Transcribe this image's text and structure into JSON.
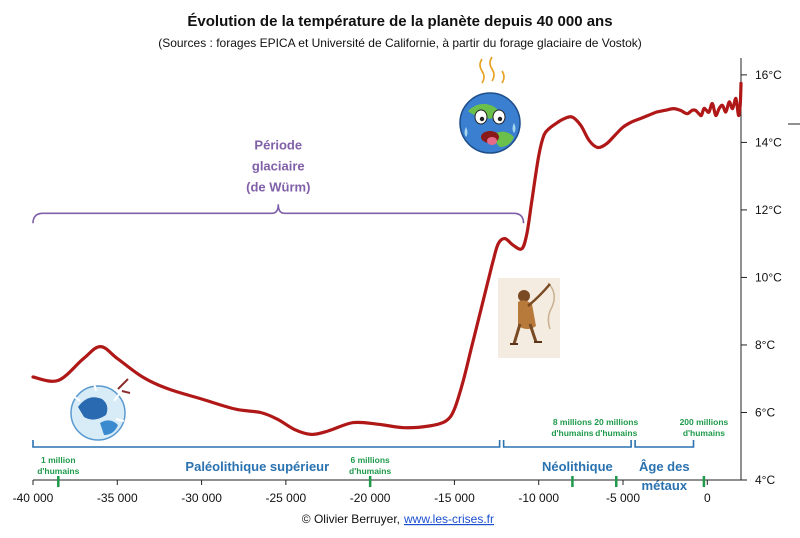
{
  "chart_data": {
    "type": "line",
    "title": "Évolution de la température de la planète depuis 40 000 ans",
    "subtitle": "(Sources : forages EPICA et Université de Californie, à partir du forage glaciaire de Vostok)",
    "xlabel": "",
    "ylabel": "",
    "xlim": [
      -40000,
      2000
    ],
    "ylim": [
      4,
      16.5
    ],
    "x_ticks": [
      -40000,
      -35000,
      -30000,
      -25000,
      -20000,
      -15000,
      -10000,
      -5000,
      0
    ],
    "x_tick_labels": [
      "-40 000",
      "-35 000",
      "-30 000",
      "-25 000",
      "-20 000",
      "-15 000",
      "-10 000",
      "-5 000",
      "0"
    ],
    "y_ticks": [
      4,
      6,
      8,
      10,
      12,
      14,
      16
    ],
    "y_tick_labels": [
      "4°C",
      "6°C",
      "8°C",
      "10°C",
      "12°C",
      "14°C",
      "16°C"
    ],
    "grid": false,
    "series": [
      {
        "color": "#b01818",
        "x": [
          -40000,
          -38500,
          -37000,
          -36000,
          -35000,
          -33500,
          -32000,
          -30000,
          -28000,
          -26500,
          -25500,
          -24500,
          -23500,
          -22500,
          -21000,
          -19500,
          -18000,
          -16500,
          -15500,
          -15000,
          -14500,
          -14000,
          -13500,
          -13000,
          -12700,
          -12400,
          -12000,
          -11500,
          -11000,
          -10700,
          -10400,
          -10000,
          -9700,
          -9400,
          -9000,
          -8500,
          -8000,
          -7500,
          -7000,
          -6500,
          -6000,
          -5500,
          -5000,
          -4500,
          -4000,
          -3500,
          -3000,
          -2500,
          -2000,
          -1600,
          -1200,
          -900,
          -700,
          -500,
          -350,
          -200,
          -50,
          100,
          300,
          500,
          700,
          900,
          1100,
          1300,
          1500,
          1700,
          1850,
          1950,
          2000
        ],
        "y": [
          7.05,
          6.95,
          7.6,
          7.95,
          7.6,
          7.05,
          6.7,
          6.4,
          6.1,
          6.0,
          5.8,
          5.5,
          5.35,
          5.45,
          5.7,
          5.65,
          5.55,
          5.6,
          5.75,
          6.1,
          6.9,
          7.9,
          8.9,
          9.9,
          10.5,
          11.0,
          11.15,
          10.95,
          10.85,
          11.3,
          12.3,
          13.6,
          14.2,
          14.4,
          14.55,
          14.7,
          14.75,
          14.5,
          14.05,
          13.85,
          13.95,
          14.2,
          14.45,
          14.6,
          14.7,
          14.8,
          14.9,
          14.95,
          15.0,
          14.95,
          14.85,
          14.95,
          14.95,
          14.85,
          14.8,
          15.0,
          14.95,
          14.9,
          15.15,
          14.8,
          15.0,
          15.1,
          14.9,
          15.2,
          15.0,
          15.3,
          14.8,
          15.1,
          15.75
        ]
      }
    ],
    "annotations": {
      "glacial": {
        "label_lines": [
          "Période",
          "glaciaire",
          "(de Würm)"
        ],
        "x_start": -40000,
        "x_end": -10900,
        "y": 11.9
      },
      "eras": [
        {
          "label": "Paléolithique supérieur",
          "x_start": -40000,
          "x_end": -12200
        },
        {
          "label": "Néolithique",
          "x_start": -12200,
          "x_end": -4400
        },
        {
          "label_lines": [
            "Âge des",
            "métaux"
          ],
          "x_start": -4400,
          "x_end": -700
        }
      ],
      "populations": [
        {
          "lines": [
            "1 million",
            "d'humains"
          ],
          "x": -38500
        },
        {
          "lines": [
            "6 millions",
            "d'humains"
          ],
          "x": -20000
        },
        {
          "lines": [
            "8 millions",
            "d'humains"
          ],
          "x": -8000
        },
        {
          "lines": [
            "20 millions",
            "d'humains"
          ],
          "x": -5400
        },
        {
          "lines": [
            "200 millions",
            "d'humains"
          ],
          "x": -200
        }
      ]
    }
  },
  "footer": {
    "credit": "© Olivier Berruyer,",
    "link": "www.les-crises.fr"
  }
}
